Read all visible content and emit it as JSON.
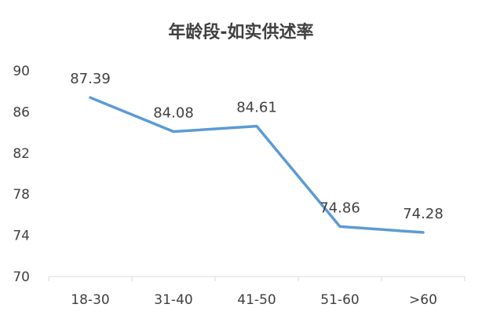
{
  "chart_data": {
    "type": "line",
    "title": "年龄段-如实供述率",
    "xlabel": "",
    "ylabel": "",
    "categories": [
      "18-30",
      "31-40",
      "41-50",
      "51-60",
      ">60"
    ],
    "series": [
      {
        "values": [
          87.39,
          84.08,
          84.61,
          74.86,
          74.28
        ],
        "labels": [
          "87.39",
          "84.08",
          "84.61",
          "74.86",
          "74.28"
        ],
        "color": "#5B9BD5"
      }
    ],
    "ylim": [
      70,
      90
    ],
    "yticks": [
      "70",
      "74",
      "78",
      "82",
      "86",
      "90"
    ],
    "grid": false,
    "legend": "none"
  }
}
